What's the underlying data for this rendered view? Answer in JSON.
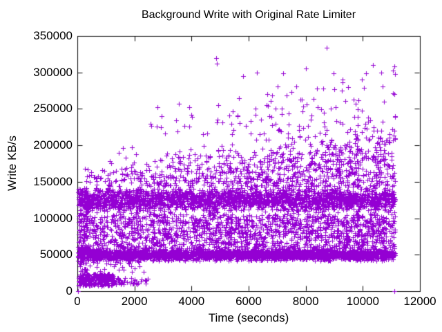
{
  "chart_data": {
    "type": "scatter",
    "title": "Background Write with Original Rate Limiter",
    "xlabel": "Time (seconds)",
    "ylabel": "Write KB/s",
    "xlim": [
      0,
      12000
    ],
    "ylim": [
      0,
      350000
    ],
    "xticks": [
      0,
      2000,
      4000,
      6000,
      8000,
      10000,
      12000
    ],
    "yticks": [
      0,
      50000,
      100000,
      150000,
      200000,
      250000,
      300000,
      350000
    ],
    "grid": false,
    "legend": "none",
    "marker": {
      "shape": "plus",
      "size": 7,
      "color": "#9400d3"
    },
    "axis_color": "#000000",
    "background_color": "#ffffff",
    "x_data_range": [
      30,
      11130
    ],
    "seed": 1337,
    "point_clusters": [
      {
        "name": "steady-band-50k",
        "count": 2600,
        "x": {
          "min": 30,
          "max": 11130,
          "bias": 1
        },
        "y": {
          "dist": "normal",
          "mean": 50000,
          "sd": 3800,
          "min": 41500,
          "max": 59500
        }
      },
      {
        "name": "upper-band-125k",
        "count": 2300,
        "x": {
          "min": 30,
          "max": 11130,
          "bias": 1
        },
        "y": {
          "dist": "normal",
          "mean": 126000,
          "sd": 8500,
          "min": 106000,
          "max": 141500
        }
      },
      {
        "name": "mid-scatter",
        "count": 1500,
        "x": {
          "min": 30,
          "max": 11130,
          "bias": 0.85
        },
        "y": {
          "dist": "uniform",
          "min": 58000,
          "max": 106000
        }
      },
      {
        "name": "high-scatter",
        "count": 900,
        "x": {
          "min": 30,
          "max": 11130,
          "bias": 0.6
        },
        "y": {
          "dist": "taper",
          "base": 143000,
          "top_start": 172000,
          "top_end": 248000
        }
      },
      {
        "name": "burst-outliers",
        "count": 115,
        "x": {
          "min": 2500,
          "max": 11130,
          "bias": 0.7
        },
        "y": {
          "dist": "taper",
          "base": 215000,
          "top_start": 245000,
          "top_end": 340000
        }
      },
      {
        "name": "startup-low-dense",
        "count": 230,
        "x": {
          "min": 30,
          "max": 1250,
          "bias": 1
        },
        "y": {
          "dist": "uniform",
          "min": 7000,
          "max": 24000
        }
      },
      {
        "name": "startup-low-sparse",
        "count": 55,
        "x": {
          "min": 1250,
          "max": 2550,
          "bias": 1.6
        },
        "y": {
          "dist": "uniform",
          "min": 9000,
          "max": 18000
        }
      },
      {
        "name": "startup-mid-gap",
        "count": 30,
        "x": {
          "min": 100,
          "max": 2400,
          "bias": 1.2
        },
        "y": {
          "dist": "uniform",
          "min": 26000,
          "max": 41000
        }
      },
      {
        "name": "left-edge-column",
        "count": 130,
        "x": {
          "min": 30,
          "max": 380,
          "bias": 1
        },
        "y": {
          "dist": "uniform",
          "min": 10000,
          "max": 140000
        }
      }
    ],
    "notable_points": [
      [
        4870,
        320000
      ],
      [
        4895,
        312000
      ],
      [
        8737,
        334000
      ],
      [
        10350,
        310000
      ],
      [
        10650,
        300000
      ],
      [
        5800,
        295000
      ],
      [
        6300,
        300000
      ],
      [
        7200,
        299000
      ],
      [
        8000,
        305000
      ],
      [
        3550,
        257000
      ],
      [
        2800,
        252000
      ],
      [
        9300,
        290000
      ],
      [
        1450,
        190000
      ],
      [
        1600,
        196000
      ],
      [
        1900,
        197000
      ],
      [
        2050,
        188000
      ],
      [
        1700,
        183000
      ],
      [
        30,
        0
      ],
      [
        11100,
        0
      ]
    ]
  }
}
